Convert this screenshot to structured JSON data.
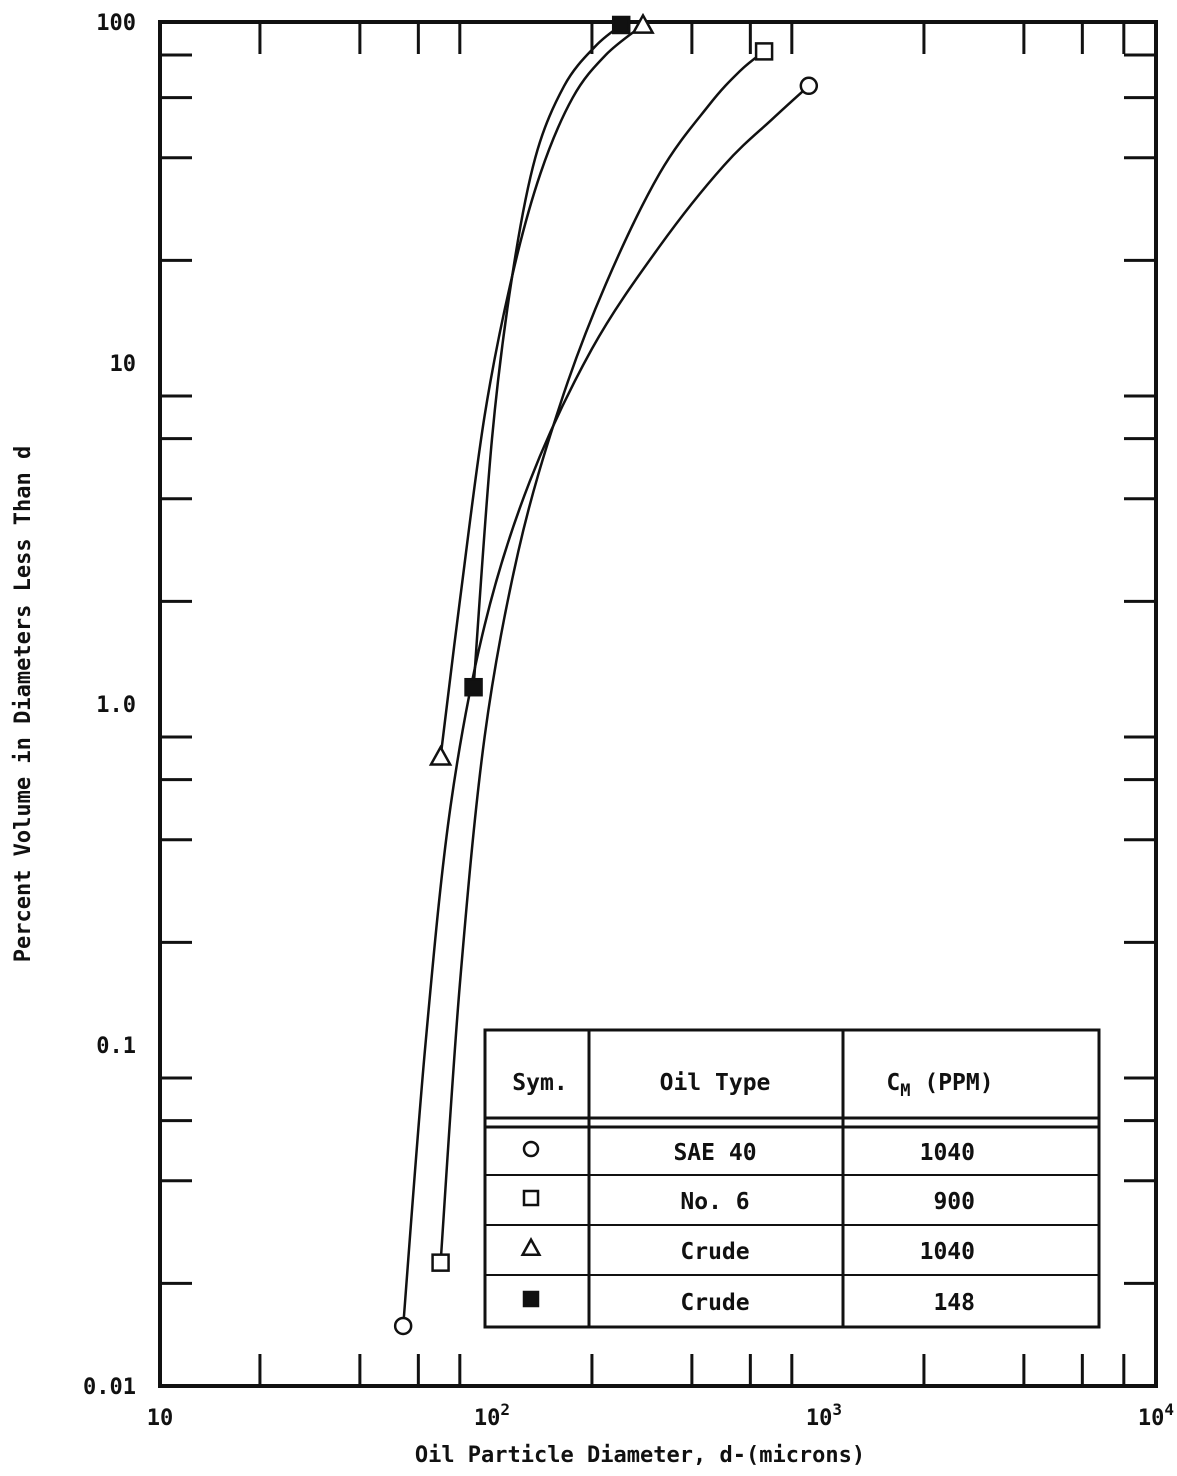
{
  "chart_data": {
    "type": "line",
    "xlabel": "Oil Particle Diameter, d-(microns)",
    "ylabel": "Percent Volume in Diameters Less Than d",
    "xscale": "log",
    "yscale": "log",
    "xlim": [
      10,
      10000
    ],
    "ylim": [
      0.01,
      100
    ],
    "x_ticks": [
      {
        "value": 10,
        "base": "10",
        "exp": ""
      },
      {
        "value": 100,
        "base": "10",
        "exp": "2"
      },
      {
        "value": 1000,
        "base": "10",
        "exp": "3"
      },
      {
        "value": 10000,
        "base": "10",
        "exp": "4"
      }
    ],
    "y_ticks": [
      {
        "value": 100,
        "label": "100"
      },
      {
        "value": 10,
        "label": "10"
      },
      {
        "value": 1,
        "label": "1.0"
      },
      {
        "value": 0.1,
        "label": "0.1"
      },
      {
        "value": 0.01,
        "label": "0.01"
      }
    ],
    "grid": false,
    "legend_position": "bottom-right",
    "legend": {
      "headers": {
        "sym": "Sym.",
        "oil_type": "Oil Type",
        "cm_main": "C",
        "cm_sub": "M",
        "cm_unit": " (PPM)"
      },
      "rows": [
        {
          "marker": "circle",
          "oil_type": "SAE 40",
          "cm": "1040"
        },
        {
          "marker": "square-open",
          "oil_type": "No. 6",
          "cm": "900"
        },
        {
          "marker": "triangle",
          "oil_type": "Crude",
          "cm": "1040"
        },
        {
          "marker": "square-filled",
          "oil_type": "Crude",
          "cm": "148"
        }
      ]
    },
    "series": [
      {
        "marker": "circle",
        "points": [
          {
            "x": 54,
            "y": 0.015
          },
          {
            "x": 900,
            "y": 65
          }
        ],
        "curve": [
          [
            54,
            0.015
          ],
          [
            63,
            0.1
          ],
          [
            75,
            0.5
          ],
          [
            95,
            1.7
          ],
          [
            130,
            4.5
          ],
          [
            200,
            11
          ],
          [
            320,
            22
          ],
          [
            500,
            38
          ],
          [
            700,
            52
          ],
          [
            900,
            65
          ]
        ]
      },
      {
        "marker": "square-open",
        "points": [
          {
            "x": 70,
            "y": 0.023
          },
          {
            "x": 660,
            "y": 82
          }
        ],
        "curve": [
          [
            70,
            0.023
          ],
          [
            80,
            0.15
          ],
          [
            95,
            0.8
          ],
          [
            120,
            2.8
          ],
          [
            160,
            7.5
          ],
          [
            220,
            17
          ],
          [
            320,
            36
          ],
          [
            450,
            57
          ],
          [
            560,
            72
          ],
          [
            660,
            82
          ]
        ]
      },
      {
        "marker": "triangle",
        "points": [
          {
            "x": 70,
            "y": 0.7
          },
          {
            "x": 285,
            "y": 98
          }
        ],
        "curve": [
          [
            70,
            0.7
          ],
          [
            80,
            2
          ],
          [
            95,
            7
          ],
          [
            115,
            18
          ],
          [
            140,
            36
          ],
          [
            175,
            60
          ],
          [
            220,
            80
          ],
          [
            285,
            98
          ]
        ]
      },
      {
        "marker": "square-filled",
        "points": [
          {
            "x": 88,
            "y": 1.12
          },
          {
            "x": 245,
            "y": 98
          }
        ],
        "curve": [
          [
            88,
            1.12
          ],
          [
            100,
            6
          ],
          [
            115,
            18
          ],
          [
            135,
            40
          ],
          [
            165,
            65
          ],
          [
            205,
            85
          ],
          [
            245,
            98
          ]
        ]
      }
    ]
  }
}
